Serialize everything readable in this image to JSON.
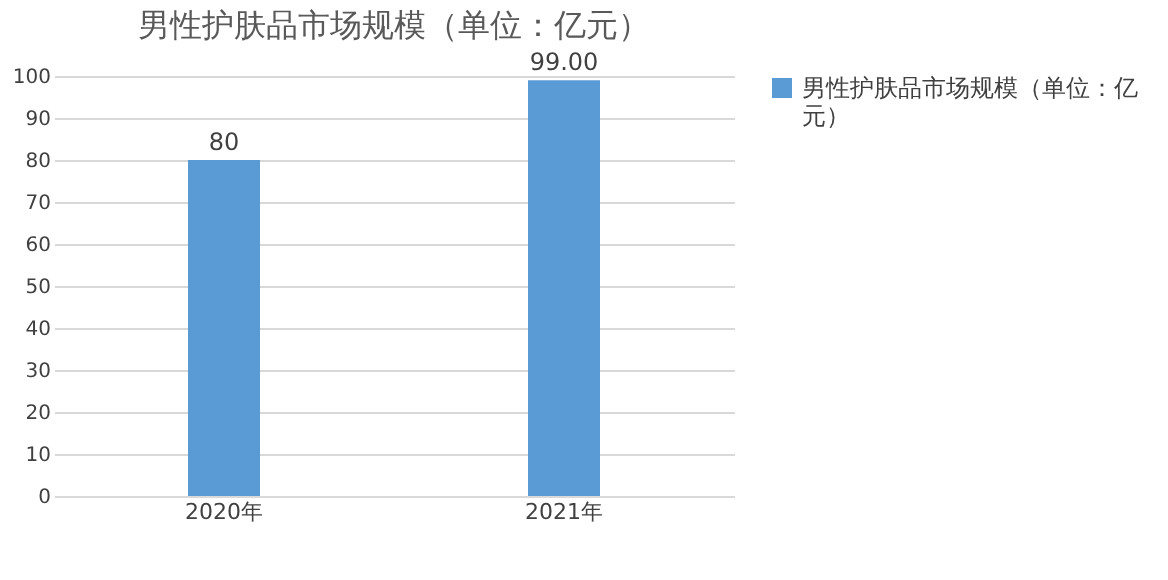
{
  "chart_data": {
    "type": "bar",
    "title": "男性护肤品市场规模（单位：亿元）",
    "categories": [
      "2020年",
      "2021年"
    ],
    "series": [
      {
        "name": "男性护肤品市场规模（单位：亿元）",
        "color": "#5b9bd5",
        "values": [
          80,
          99
        ],
        "value_labels": [
          "80",
          "99.00"
        ]
      }
    ],
    "ylim": [
      0,
      100
    ],
    "yticks": [
      0,
      10,
      20,
      30,
      40,
      50,
      60,
      70,
      80,
      90,
      100
    ],
    "grid": "y",
    "legend": "right"
  }
}
